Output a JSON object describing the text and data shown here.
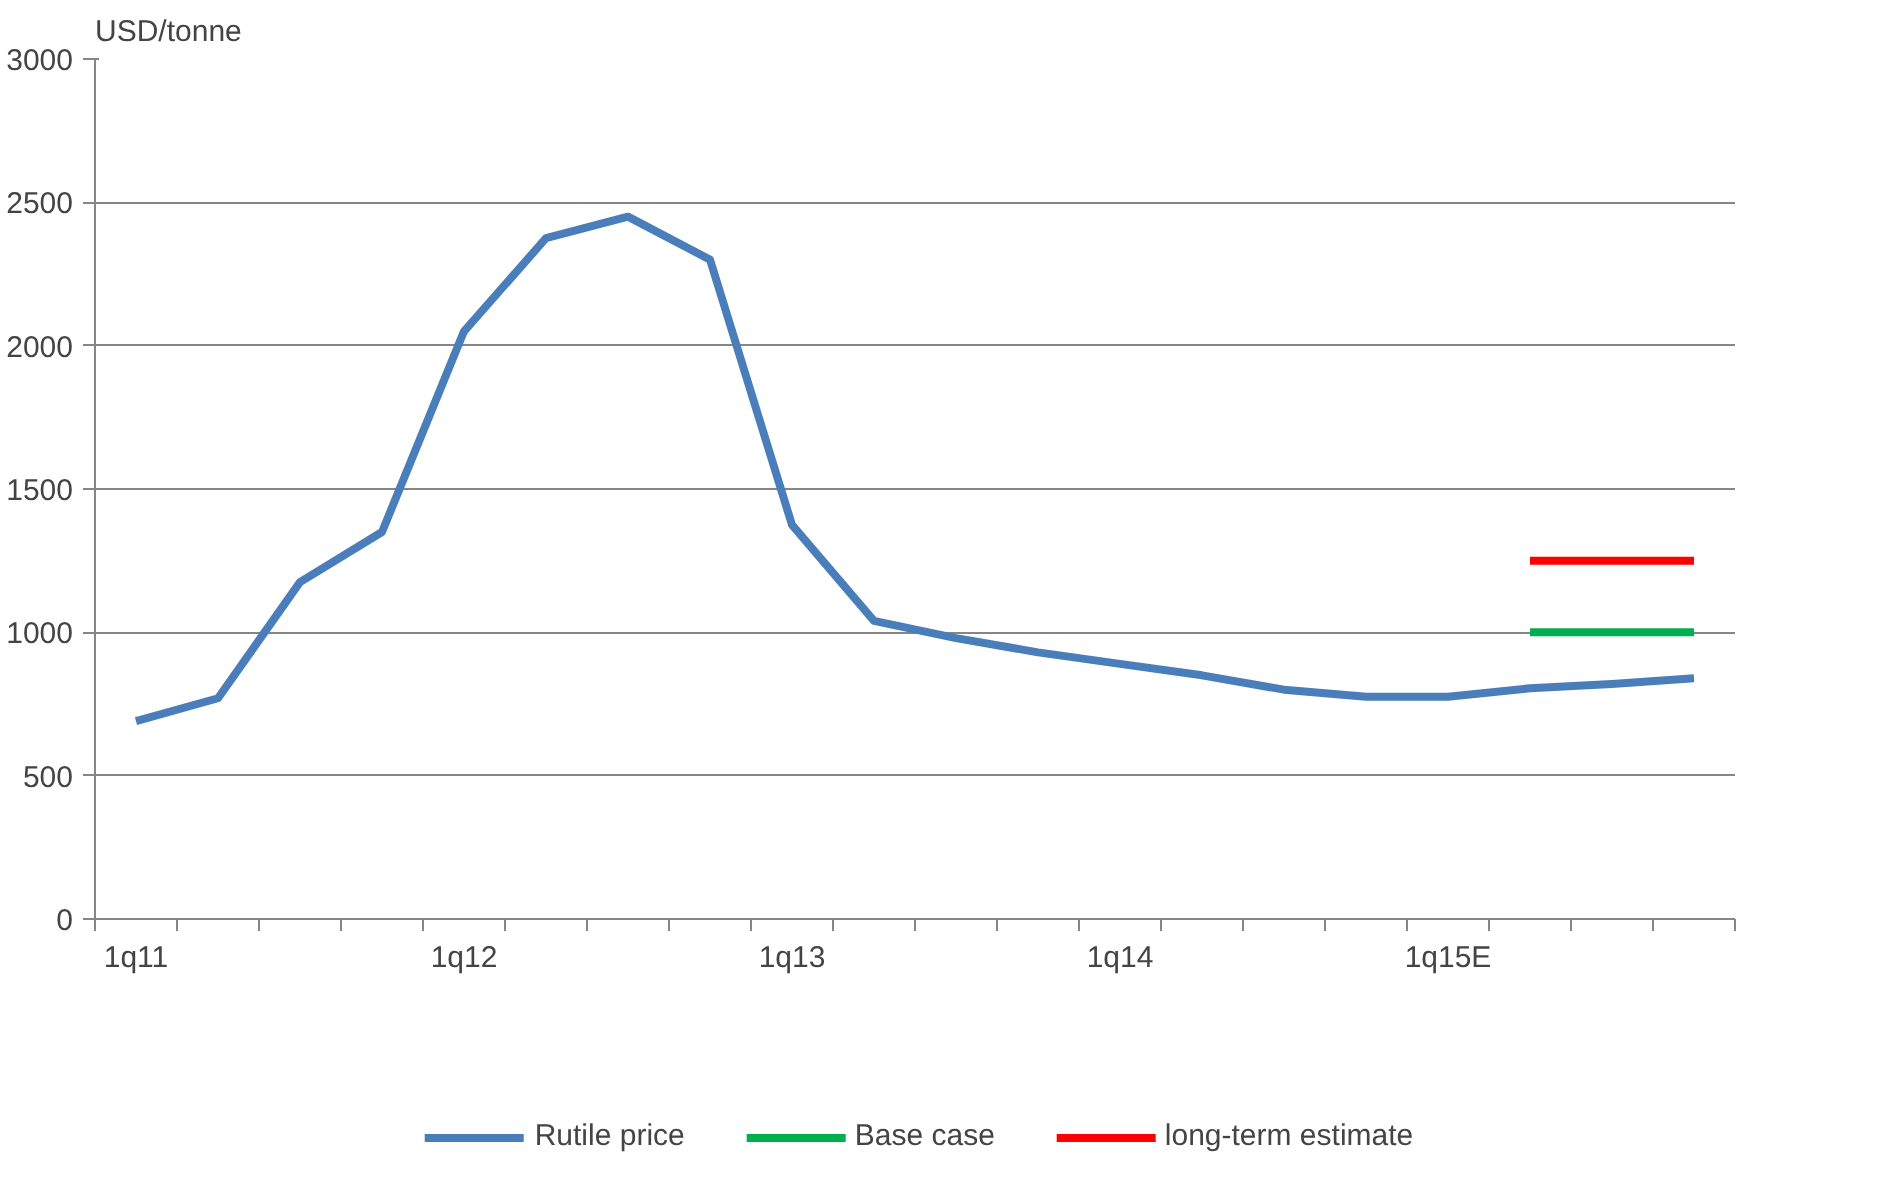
{
  "chart_data": {
    "type": "line",
    "ylabel": "USD/tonne",
    "categories": [
      "1q11",
      null,
      null,
      null,
      "1q12",
      null,
      null,
      null,
      "1q13",
      null,
      null,
      null,
      "1q14",
      null,
      null,
      null,
      "1q15E",
      null,
      null,
      null
    ],
    "series": [
      {
        "name": "Rutile price",
        "color": "#4a7ebb",
        "values": [
          690,
          770,
          1175,
          1350,
          2050,
          2375,
          2450,
          2300,
          1375,
          1040,
          980,
          930,
          890,
          850,
          800,
          775,
          775,
          805,
          820,
          840
        ]
      },
      {
        "name": "Base case",
        "color": "#00b050",
        "values": [
          null,
          null,
          null,
          null,
          null,
          null,
          null,
          null,
          null,
          null,
          null,
          null,
          null,
          null,
          null,
          null,
          null,
          1000,
          1000,
          1000
        ]
      },
      {
        "name": "long-term estimate",
        "color": "#ff0000",
        "values": [
          null,
          null,
          null,
          null,
          null,
          null,
          null,
          null,
          null,
          null,
          null,
          null,
          null,
          null,
          null,
          null,
          null,
          1250,
          1250,
          1250
        ]
      }
    ],
    "ylim": [
      0,
      3000
    ],
    "yticks": [
      0,
      500,
      1000,
      1500,
      2000,
      2500,
      3000
    ],
    "grid": "y",
    "legend": "bottom",
    "marker": "none",
    "line_style": "solid"
  }
}
